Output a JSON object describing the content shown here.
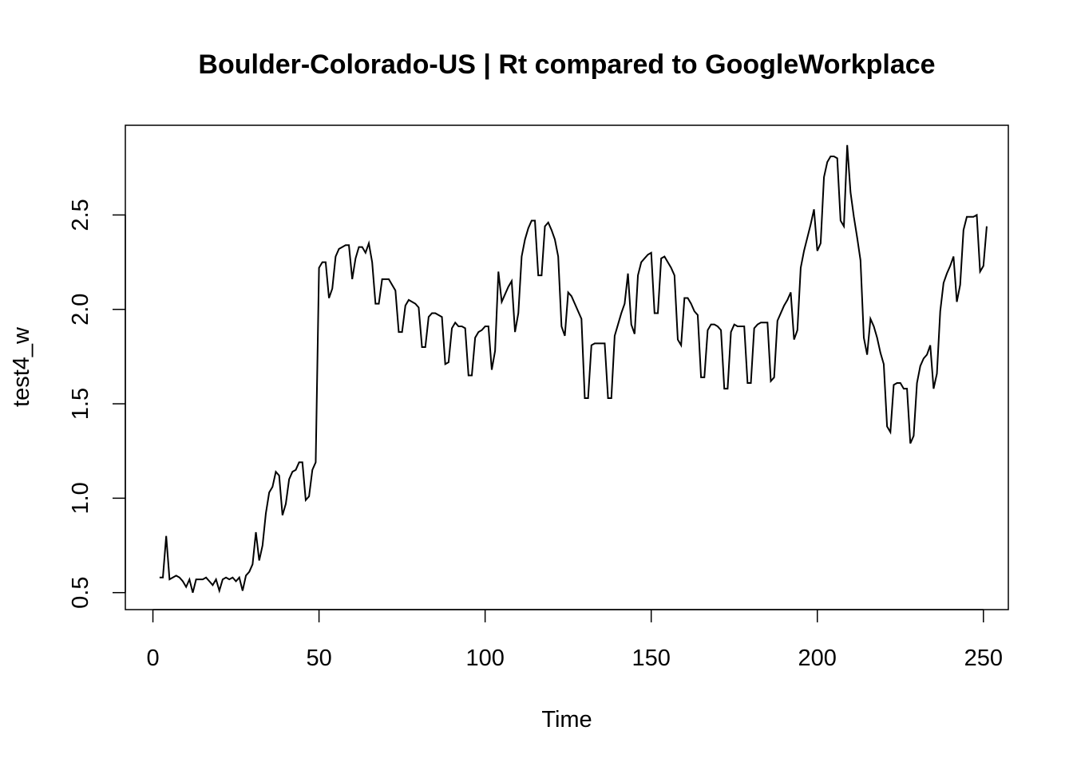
{
  "chart_data": {
    "type": "line",
    "title": "Boulder-Colorado-US | Rt compared to GoogleWorkplace",
    "xlabel": "Time",
    "ylabel": "test4_w",
    "xlim": [
      -8.3,
      257.5
    ],
    "ylim": [
      0.41,
      2.975
    ],
    "x_ticks": [
      0,
      50,
      100,
      150,
      200,
      250
    ],
    "x_tick_labels": [
      "0",
      "50",
      "100",
      "150",
      "200",
      "250"
    ],
    "y_ticks": [
      0.5,
      1.0,
      1.5,
      2.0,
      2.5
    ],
    "y_tick_labels": [
      "0.5",
      "1.0",
      "1.5",
      "2.0",
      "2.5"
    ],
    "grid": false,
    "line_color": "#000000",
    "series": [
      {
        "x_start": 2,
        "values": [
          0.58,
          0.58,
          0.8,
          0.57,
          0.58,
          0.59,
          0.58,
          0.56,
          0.53,
          0.57,
          0.5,
          0.57,
          0.57,
          0.57,
          0.58,
          0.56,
          0.54,
          0.57,
          0.51,
          0.57,
          0.58,
          0.57,
          0.58,
          0.56,
          0.58,
          0.51,
          0.59,
          0.61,
          0.65,
          0.82,
          0.67,
          0.75,
          0.92,
          1.03,
          1.06,
          1.14,
          1.12,
          0.91,
          0.97,
          1.1,
          1.14,
          1.15,
          1.19,
          1.19,
          0.99,
          1.01,
          1.15,
          1.19,
          2.22,
          2.25,
          2.25,
          2.06,
          2.11,
          2.28,
          2.32,
          2.33,
          2.34,
          2.34,
          2.16,
          2.27,
          2.33,
          2.33,
          2.3,
          2.35,
          2.25,
          2.03,
          2.03,
          2.16,
          2.16,
          2.16,
          2.13,
          2.1,
          1.88,
          1.88,
          2.02,
          2.05,
          2.04,
          2.03,
          2.01,
          1.8,
          1.8,
          1.96,
          1.98,
          1.98,
          1.97,
          1.96,
          1.71,
          1.72,
          1.9,
          1.93,
          1.91,
          1.91,
          1.9,
          1.65,
          1.65,
          1.85,
          1.88,
          1.89,
          1.91,
          1.91,
          1.68,
          1.78,
          2.2,
          2.04,
          2.08,
          2.12,
          2.15,
          1.88,
          1.98,
          2.28,
          2.37,
          2.43,
          2.47,
          2.47,
          2.18,
          2.18,
          2.44,
          2.46,
          2.42,
          2.37,
          2.28,
          1.91,
          1.86,
          2.09,
          2.07,
          2.03,
          1.99,
          1.95,
          1.53,
          1.53,
          1.81,
          1.82,
          1.82,
          1.82,
          1.82,
          1.53,
          1.53,
          1.86,
          1.92,
          1.98,
          2.03,
          2.19,
          1.92,
          1.87,
          2.18,
          2.25,
          2.27,
          2.29,
          2.3,
          1.98,
          1.98,
          2.27,
          2.28,
          2.25,
          2.22,
          2.18,
          1.84,
          1.81,
          2.06,
          2.06,
          2.03,
          1.99,
          1.97,
          1.64,
          1.64,
          1.89,
          1.92,
          1.92,
          1.91,
          1.89,
          1.58,
          1.58,
          1.88,
          1.92,
          1.91,
          1.91,
          1.91,
          1.61,
          1.61,
          1.9,
          1.92,
          1.93,
          1.93,
          1.93,
          1.62,
          1.64,
          1.94,
          1.98,
          2.02,
          2.05,
          2.09,
          1.84,
          1.89,
          2.22,
          2.31,
          2.38,
          2.45,
          2.53,
          2.31,
          2.35,
          2.7,
          2.78,
          2.81,
          2.81,
          2.8,
          2.47,
          2.44,
          2.87,
          2.62,
          2.49,
          2.38,
          2.26,
          1.85,
          1.76,
          1.95,
          1.91,
          1.85,
          1.77,
          1.71,
          1.38,
          1.35,
          1.6,
          1.61,
          1.61,
          1.58,
          1.58,
          1.29,
          1.33,
          1.61,
          1.7,
          1.74,
          1.76,
          1.81,
          1.58,
          1.66,
          1.99,
          2.14,
          2.19,
          2.23,
          2.28,
          2.04,
          2.13,
          2.42,
          2.49,
          2.49,
          2.49,
          2.5,
          2.2,
          2.23,
          2.44
        ]
      }
    ]
  }
}
